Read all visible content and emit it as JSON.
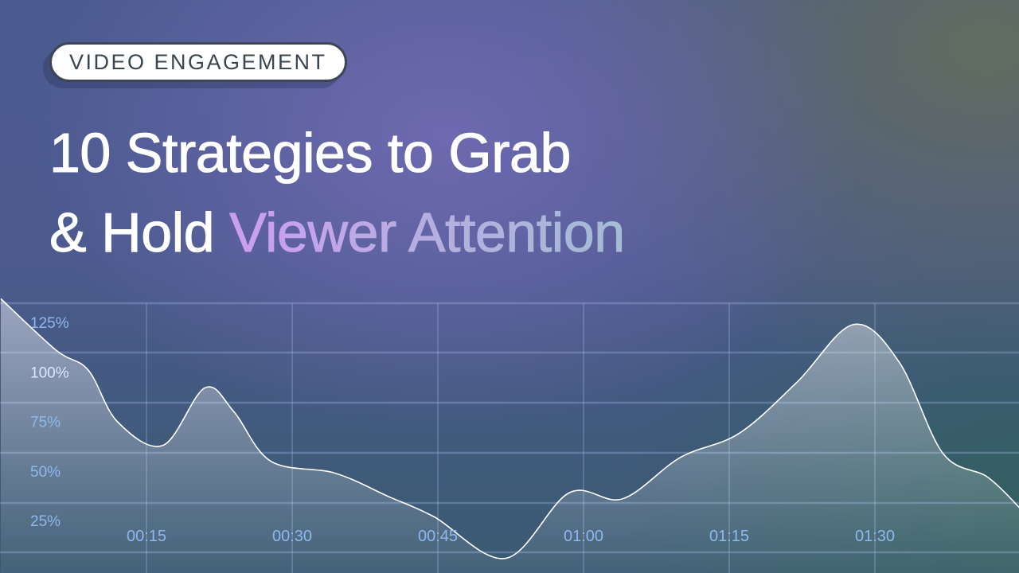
{
  "tag": {
    "label": "VIDEO ENGAGEMENT"
  },
  "title": {
    "line1": "10 Strategies to Grab",
    "line2_plain": "& Hold",
    "line2_highlight": "Viewer Attention"
  },
  "colors": {
    "tag_border": "#3c4654",
    "highlight_start": "#cc9ef0",
    "highlight_end": "#a4bcd6",
    "axis_label": "#8fb8ee",
    "curve": "#ffffff"
  },
  "chart_data": {
    "type": "area",
    "xlabel": "",
    "ylabel": "",
    "x_ticks": [
      "00:15",
      "00:30",
      "00:45",
      "01:00",
      "01:15",
      "01:30"
    ],
    "y_ticks": [
      "125%",
      "100%",
      "75%",
      "50%",
      "25%"
    ],
    "xlim_seconds": [
      0,
      105
    ],
    "ylim_percent": [
      0,
      140
    ],
    "grid": true,
    "points": [
      {
        "t": 0,
        "v": 137
      },
      {
        "t": 5.7,
        "v": 111
      },
      {
        "t": 9,
        "v": 101
      },
      {
        "t": 12,
        "v": 75
      },
      {
        "t": 16.7,
        "v": 63
      },
      {
        "t": 21,
        "v": 92
      },
      {
        "t": 24,
        "v": 80
      },
      {
        "t": 27.8,
        "v": 55
      },
      {
        "t": 34.4,
        "v": 49
      },
      {
        "t": 40,
        "v": 37
      },
      {
        "t": 44.6,
        "v": 27
      },
      {
        "t": 52,
        "v": 6
      },
      {
        "t": 58.5,
        "v": 39
      },
      {
        "t": 64,
        "v": 36
      },
      {
        "t": 70,
        "v": 57
      },
      {
        "t": 76,
        "v": 69
      },
      {
        "t": 82,
        "v": 95
      },
      {
        "t": 87.8,
        "v": 124
      },
      {
        "t": 92.5,
        "v": 105
      },
      {
        "t": 97,
        "v": 59
      },
      {
        "t": 101.6,
        "v": 47
      },
      {
        "t": 105,
        "v": 31
      }
    ]
  }
}
